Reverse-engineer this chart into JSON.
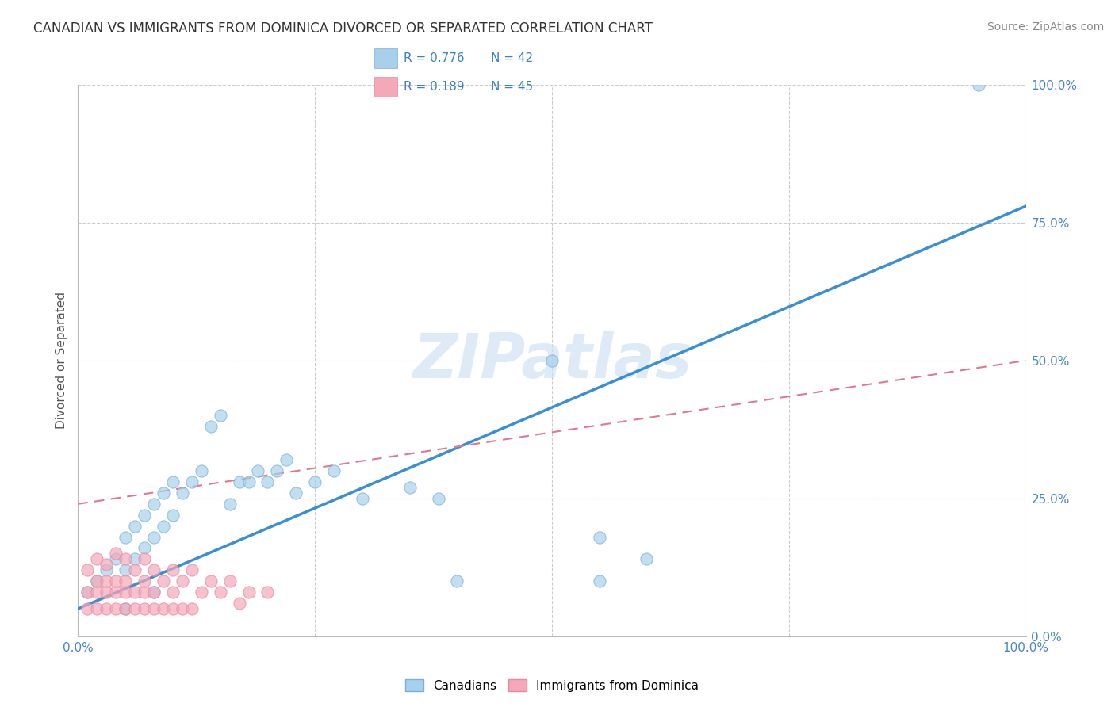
{
  "title": "CANADIAN VS IMMIGRANTS FROM DOMINICA DIVORCED OR SEPARATED CORRELATION CHART",
  "source": "Source: ZipAtlas.com",
  "ylabel": "Divorced or Separated",
  "xlim": [
    0,
    100
  ],
  "ylim": [
    0,
    100
  ],
  "xticks": [
    0,
    25,
    50,
    75,
    100
  ],
  "xticklabels": [
    "0.0%",
    "",
    "",
    "",
    "100.0%"
  ],
  "yticks": [
    0,
    25,
    50,
    75,
    100
  ],
  "yticklabels": [
    "0.0%",
    "25.0%",
    "50.0%",
    "75.0%",
    "100.0%"
  ],
  "R_canadian": 0.776,
  "N_canadian": 42,
  "R_dominica": 0.189,
  "N_dominica": 45,
  "canadian_color": "#a8d0ec",
  "dominica_color": "#f4a8b8",
  "canadian_edge": "#7ab0d8",
  "dominica_edge": "#e888a0",
  "trendline_canadian_color": "#3a8fd4",
  "trendline_dominica_color": "#e07890",
  "background_color": "#ffffff",
  "watermark": "ZIPatlas",
  "watermark_color": "#c8dff0",
  "canadians_x": [
    1,
    2,
    3,
    4,
    5,
    5,
    6,
    6,
    7,
    7,
    8,
    8,
    9,
    9,
    10,
    10,
    11,
    12,
    13,
    14,
    15,
    16,
    17,
    18,
    19,
    20,
    21,
    22,
    23,
    25,
    27,
    30,
    35,
    38,
    40,
    5,
    8,
    50,
    55,
    60,
    55,
    95
  ],
  "canadians_y": [
    8,
    10,
    12,
    14,
    12,
    18,
    14,
    20,
    16,
    22,
    18,
    24,
    20,
    26,
    22,
    28,
    26,
    28,
    30,
    38,
    40,
    24,
    28,
    28,
    30,
    28,
    30,
    32,
    26,
    28,
    30,
    25,
    27,
    25,
    10,
    5,
    8,
    50,
    10,
    14,
    18,
    100
  ],
  "dominica_x": [
    1,
    1,
    1,
    2,
    2,
    2,
    2,
    3,
    3,
    3,
    3,
    4,
    4,
    4,
    4,
    5,
    5,
    5,
    5,
    6,
    6,
    6,
    7,
    7,
    7,
    7,
    8,
    8,
    8,
    9,
    9,
    10,
    10,
    10,
    11,
    11,
    12,
    12,
    13,
    14,
    15,
    16,
    17,
    18,
    20
  ],
  "dominica_y": [
    5,
    8,
    12,
    5,
    8,
    10,
    14,
    5,
    8,
    10,
    13,
    5,
    8,
    10,
    15,
    5,
    8,
    10,
    14,
    5,
    8,
    12,
    5,
    8,
    10,
    14,
    5,
    8,
    12,
    5,
    10,
    5,
    8,
    12,
    5,
    10,
    5,
    12,
    8,
    10,
    8,
    10,
    6,
    8,
    8
  ],
  "trendline_canadian_x0": 0,
  "trendline_canadian_y0": 5,
  "trendline_canadian_x1": 100,
  "trendline_canadian_y1": 78,
  "trendline_dominica_x0": 0,
  "trendline_dominica_y0": 24,
  "trendline_dominica_x1": 100,
  "trendline_dominica_y1": 50
}
